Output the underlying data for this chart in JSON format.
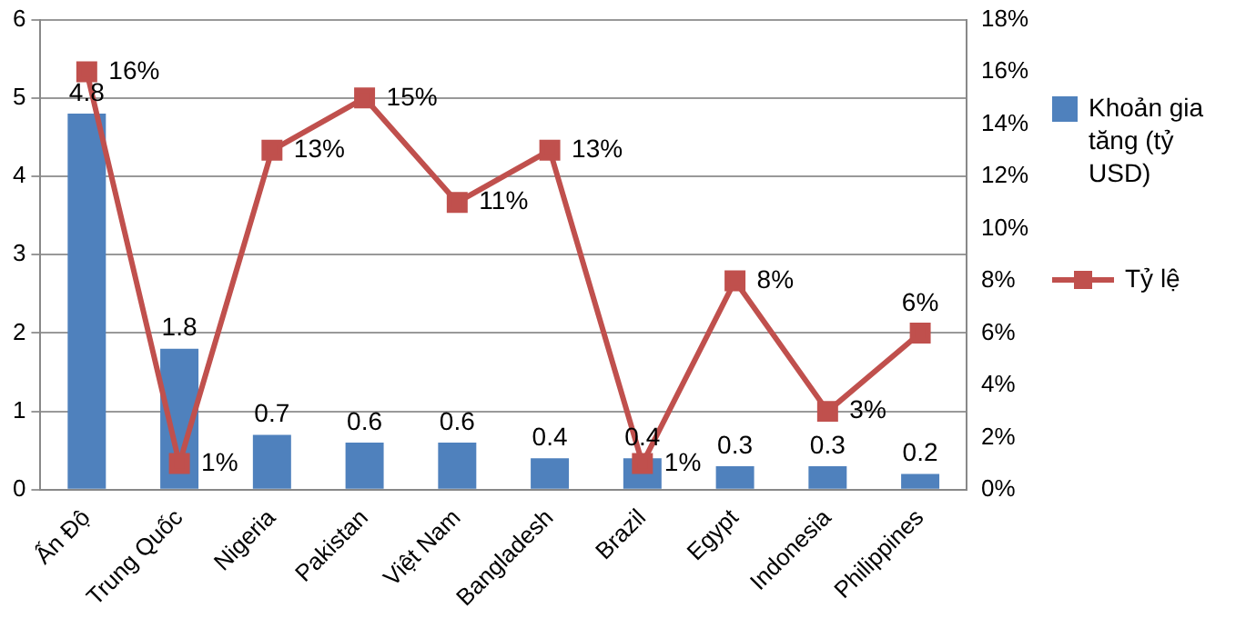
{
  "chart_data": {
    "type": "bar",
    "categories": [
      "Ấn Độ",
      "Trung Quốc",
      "Nigeria",
      "Pakistan",
      "Việt Nam",
      "Bangladesh",
      "Brazil",
      "Egypt",
      "Indonesia",
      "Philippines"
    ],
    "series": [
      {
        "name": "Khoản gia tăng (tỷ USD)",
        "color": "#4f81bd",
        "values": [
          4.8,
          1.8,
          0.7,
          0.6,
          0.6,
          0.4,
          0.4,
          0.3,
          0.3,
          0.2
        ],
        "value_labels": [
          "4.8",
          "1.8",
          "0.7",
          "0.6",
          "0.6",
          "0.4",
          "0.4",
          "0.3",
          "0.3",
          "0.2"
        ]
      },
      {
        "name": "Tỷ lệ",
        "type": "line",
        "axis": "y2",
        "color": "#c0504d",
        "marker": "square",
        "values": [
          16,
          1,
          13,
          15,
          11,
          13,
          1,
          8,
          3,
          6
        ],
        "value_labels": [
          "16%",
          "1%",
          "13%",
          "15%",
          "11%",
          "13%",
          "1%",
          "8%",
          "3%",
          "6%"
        ]
      }
    ],
    "ylim": [
      0,
      6
    ],
    "yticks": [
      0,
      1,
      2,
      3,
      4,
      5,
      6
    ],
    "y2lim": [
      0,
      18
    ],
    "y2ticks": [
      {
        "value": 0,
        "label": "0%"
      },
      {
        "value": 2,
        "label": "2%"
      },
      {
        "value": 4,
        "label": "4%"
      },
      {
        "value": 6,
        "label": "6%"
      },
      {
        "value": 8,
        "label": "8%"
      },
      {
        "value": 10,
        "label": "10%"
      },
      {
        "value": 12,
        "label": "12%"
      },
      {
        "value": 14,
        "label": "14%"
      },
      {
        "value": 16,
        "label": "16%"
      },
      {
        "value": 18,
        "label": "18%"
      }
    ],
    "grid": "y",
    "legend": "right"
  }
}
